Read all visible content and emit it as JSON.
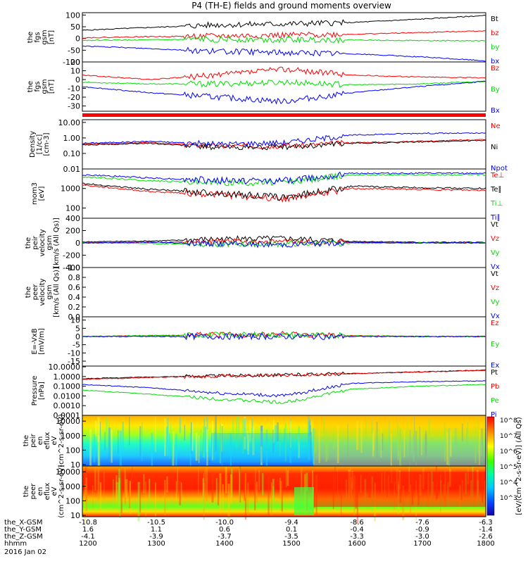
{
  "title": "P4 (TH-E) fields and ground moments overview",
  "footer": {
    "rows": [
      {
        "label": "the_X-GSM",
        "ticks": [
          "-10.8",
          "-10.5",
          "-10.0",
          "-9.4",
          "-8.6",
          "-7.6",
          "-6.3"
        ]
      },
      {
        "label": "the_Y-GSM",
        "ticks": [
          "1.6",
          "1.1",
          "0.6",
          "0.1",
          "-0.4",
          "-0.9",
          "-1.4"
        ]
      },
      {
        "label": "the_Z-GSM",
        "ticks": [
          "-4.1",
          "-3.9",
          "-3.7",
          "-3.5",
          "-3.3",
          "-3.0",
          "-2.6"
        ]
      },
      {
        "label": "hhmm",
        "ticks": [
          "1200",
          "1300",
          "1400",
          "1500",
          "1600",
          "1700",
          "1800"
        ]
      }
    ],
    "date": "2016 Jan 02"
  },
  "colorbar_label": "[eV/(cm^2-s-sr-eV)] (All Qs)",
  "colorbar_ticks": [
    "10^8",
    "10^7",
    "10^6",
    "10^5",
    "10^4",
    "10^3"
  ],
  "colors": {
    "black": "#000000",
    "red": "#ff0000",
    "green": "#00dd00",
    "blue": "#0000ff"
  },
  "chart_data": [
    {
      "id": "fgs_bt",
      "type": "line",
      "ylabel": [
        "the",
        "fgs",
        "gsm",
        "[nT]"
      ],
      "yticks": [
        "100",
        "50",
        "0",
        "-50",
        "-100"
      ],
      "ylim": [
        -100,
        110
      ],
      "x": [
        "12:00",
        "13:00",
        "14:00",
        "15:00",
        "16:00",
        "17:00",
        "18:00"
      ],
      "series": [
        {
          "name": "Bt",
          "color": "#000000",
          "values": [
            35,
            47,
            58,
            62,
            68,
            82,
            98
          ]
        },
        {
          "name": "bz",
          "color": "#ff0000",
          "values": [
            3,
            8,
            10,
            14,
            18,
            25,
            33
          ]
        },
        {
          "name": "by",
          "color": "#00dd00",
          "values": [
            -8,
            -6,
            -4,
            -5,
            -6,
            -9,
            -10
          ]
        },
        {
          "name": "bx",
          "color": "#0000ff",
          "values": [
            -32,
            -43,
            -55,
            -60,
            -65,
            -78,
            -95
          ]
        }
      ]
    },
    {
      "id": "fgs_b",
      "type": "line",
      "ylabel": [
        "the",
        "fgs",
        "gsm",
        "[nT]"
      ],
      "yticks": [
        "20",
        "10",
        "0",
        "-10",
        "-20",
        "-30"
      ],
      "ylim": [
        -36,
        20
      ],
      "x": [
        "12:00",
        "13:00",
        "14:00",
        "15:00",
        "16:00",
        "17:00",
        "18:00"
      ],
      "series": [
        {
          "name": "Bz",
          "color": "#ff0000",
          "values": [
            5,
            0,
            5,
            12,
            5,
            3,
            2
          ]
        },
        {
          "name": "By",
          "color": "#00dd00",
          "values": [
            -3,
            -5,
            -5,
            -3,
            -6,
            -5,
            -2
          ]
        },
        {
          "name": "Bx",
          "color": "#0000ff",
          "values": [
            -8,
            -15,
            -20,
            -25,
            -15,
            -8,
            -2
          ]
        }
      ]
    },
    {
      "id": "density",
      "type": "line",
      "log": true,
      "ylabel": [
        "Density",
        "[1/cc]",
        "[cm-3]"
      ],
      "yticks": [
        "10.00",
        "1.00",
        "0.10",
        "0.01"
      ],
      "ylim": [
        0.01,
        15
      ],
      "x": [
        "12:00",
        "13:00",
        "14:00",
        "15:00",
        "16:00",
        "17:00",
        "18:00"
      ],
      "series": [
        {
          "name": "Ne",
          "color": "#ff0000",
          "values": [
            0.4,
            0.5,
            0.3,
            0.3,
            0.5,
            0.6,
            0.8
          ]
        },
        {
          "name": "Ni",
          "color": "#000000",
          "values": [
            0.35,
            0.45,
            0.25,
            0.25,
            0.45,
            0.55,
            0.7
          ]
        },
        {
          "name": "Npot",
          "color": "#0000ff",
          "values": [
            0.45,
            0.6,
            0.4,
            0.5,
            1.5,
            2.0,
            2.0
          ]
        }
      ]
    },
    {
      "id": "temperature",
      "type": "line",
      "log": true,
      "ylabel": [
        "mom3",
        "[eV]"
      ],
      "yticks": [
        "1000",
        "100"
      ],
      "ylim": [
        30,
        10000
      ],
      "x": [
        "12:00",
        "13:00",
        "14:00",
        "15:00",
        "16:00",
        "17:00",
        "18:00"
      ],
      "series": [
        {
          "name": "Te⊥",
          "color": "#ff0000",
          "values": [
            1500,
            700,
            500,
            300,
            1000,
            900,
            800
          ]
        },
        {
          "name": "Te∥",
          "color": "#000000",
          "values": [
            1800,
            900,
            600,
            350,
            1300,
            1100,
            1000
          ]
        },
        {
          "name": "Ti⊥",
          "color": "#00dd00",
          "values": [
            4000,
            2500,
            2000,
            2000,
            5000,
            5000,
            5000
          ]
        },
        {
          "name": "Ti∥",
          "color": "#0000ff",
          "values": [
            5000,
            3500,
            2500,
            2500,
            6000,
            6000,
            6000
          ]
        }
      ]
    },
    {
      "id": "peir_velocity",
      "type": "line",
      "ylabel": [
        "the",
        "peir",
        "velocity",
        "gsm",
        "[km/s (All Qs)]"
      ],
      "yticks": [
        "400",
        "200",
        "0",
        "-200",
        "-400"
      ],
      "ylim": [
        -400,
        400
      ],
      "x": [
        "12:00",
        "13:00",
        "14:00",
        "15:00",
        "16:00",
        "17:00",
        "18:00"
      ],
      "series": [
        {
          "name": "Vt",
          "color": "#000000",
          "values": [
            15,
            30,
            60,
            70,
            25,
            10,
            10
          ]
        },
        {
          "name": "Vz",
          "color": "#ff0000",
          "values": [
            0,
            10,
            20,
            20,
            5,
            0,
            0
          ]
        },
        {
          "name": "Vy",
          "color": "#00dd00",
          "values": [
            0,
            -10,
            -20,
            -20,
            -5,
            0,
            0
          ]
        },
        {
          "name": "Vx",
          "color": "#0000ff",
          "values": [
            0,
            10,
            -15,
            -30,
            10,
            0,
            0
          ]
        }
      ]
    },
    {
      "id": "peer_velocity",
      "type": "line",
      "ylabel": [
        "the",
        "peer",
        "velocity",
        "gsm",
        "[km/s (All Qs)]"
      ],
      "yticks": [
        "1.0",
        "0.8",
        "0.6",
        "0.4",
        "0.2",
        "0.0"
      ],
      "ylim": [
        0,
        1
      ],
      "x": [],
      "series": [
        {
          "name": "Vt",
          "color": "#000000",
          "values": []
        },
        {
          "name": "Vz",
          "color": "#ff0000",
          "values": []
        },
        {
          "name": "Vy",
          "color": "#00dd00",
          "values": []
        },
        {
          "name": "Vx",
          "color": "#0000ff",
          "values": []
        }
      ]
    },
    {
      "id": "efield",
      "type": "line",
      "ylabel": [
        "E=-VxB",
        "[mV/m]"
      ],
      "yticks": [
        "10",
        "5",
        "0",
        "-5",
        "-10",
        "-15"
      ],
      "ylim": [
        -18,
        12
      ],
      "x": [
        "12:00",
        "13:00",
        "14:00",
        "15:00",
        "16:00",
        "17:00",
        "18:00"
      ],
      "series": [
        {
          "name": "Ez",
          "color": "#ff0000",
          "values": [
            0,
            0.5,
            1,
            1.5,
            0.5,
            0,
            0
          ]
        },
        {
          "name": "Ey",
          "color": "#00dd00",
          "values": [
            0,
            0.5,
            1,
            1,
            0.5,
            0,
            0
          ]
        },
        {
          "name": "Ex",
          "color": "#0000ff",
          "values": [
            0,
            0,
            0,
            0,
            0,
            0,
            0
          ]
        }
      ]
    },
    {
      "id": "pressure",
      "type": "line",
      "log": true,
      "ylabel": [
        "Pressure",
        "[nPa]"
      ],
      "yticks": [
        "10.0000",
        "1.0000",
        "0.1000",
        "0.0100",
        "0.0010",
        "0.0001"
      ],
      "ylim": [
        0.0001,
        12
      ],
      "x": [
        "12:00",
        "13:00",
        "14:00",
        "15:00",
        "16:00",
        "17:00",
        "18:00"
      ],
      "series": [
        {
          "name": "Pt",
          "color": "#000000",
          "values": [
            0.6,
            0.9,
            1.2,
            1.5,
            2.0,
            3.0,
            4.5
          ]
        },
        {
          "name": "Pb",
          "color": "#ff0000",
          "values": [
            0.5,
            0.8,
            1.1,
            1.4,
            1.9,
            2.9,
            4.3
          ]
        },
        {
          "name": "Pe",
          "color": "#00dd00",
          "values": [
            0.04,
            0.015,
            0.005,
            0.002,
            0.05,
            0.1,
            0.15
          ]
        },
        {
          "name": "Pi",
          "color": "#0000ff",
          "values": [
            0.15,
            0.07,
            0.02,
            0.01,
            0.2,
            0.3,
            0.35
          ]
        }
      ]
    },
    {
      "id": "peir_spectrogram",
      "type": "heatmap",
      "ylabel": [
        "the",
        "peir",
        "en",
        "eflux",
        "eV",
        "(cm^2-s-sr-eV)"
      ],
      "yticks": [
        "10000",
        "1000",
        "100",
        "10"
      ],
      "ylim": [
        8,
        25000
      ],
      "x": [
        "12:00",
        "13:00",
        "14:00",
        "15:00",
        "16:00",
        "17:00",
        "18:00"
      ]
    },
    {
      "id": "peer_spectrogram",
      "type": "heatmap",
      "ylabel": [
        "the",
        "peer",
        "en",
        "eflux",
        "eV",
        "(cm^2-s-sr-eV)"
      ],
      "yticks": [
        "10000",
        "1000",
        "100",
        "10"
      ],
      "ylim": [
        8,
        25000
      ],
      "x": [
        "12:00",
        "13:00",
        "14:00",
        "15:00",
        "16:00",
        "17:00",
        "18:00"
      ]
    }
  ]
}
